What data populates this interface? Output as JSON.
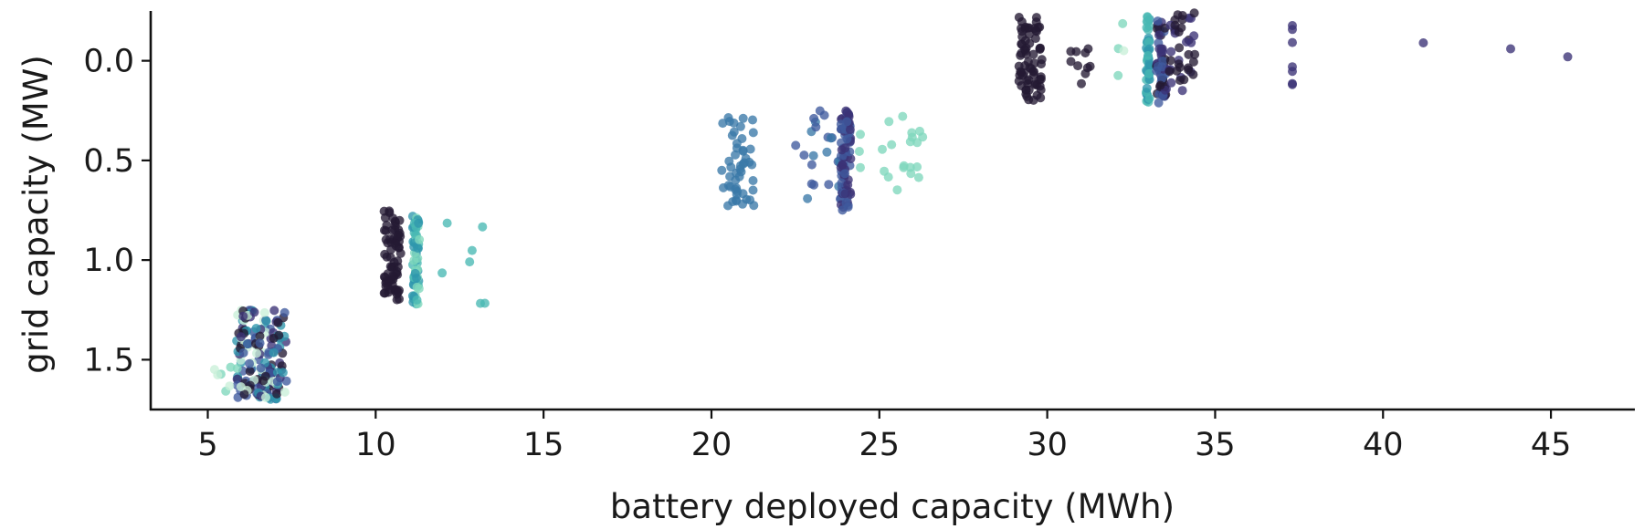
{
  "chart_data": {
    "type": "scatter",
    "title": "",
    "xlabel": "battery deployed capacity (MWh)",
    "ylabel": "grid capacity (MW)",
    "xlim": [
      3.3,
      47.5
    ],
    "ylim": [
      1.75,
      -0.25
    ],
    "y_inverted": true,
    "x_ticks": [
      5,
      10,
      15,
      20,
      25,
      30,
      35,
      40,
      45
    ],
    "x_tick_labels": [
      "5",
      "10",
      "15",
      "20",
      "25",
      "30",
      "35",
      "40",
      "45"
    ],
    "y_ticks": [
      0.0,
      0.5,
      1.0,
      1.5
    ],
    "y_tick_labels": [
      "0.0",
      "0.5",
      "1.0",
      "1.5"
    ],
    "grid": false,
    "legend": "none",
    "palette": [
      "#241a33",
      "#3b3276",
      "#3f5a9d",
      "#3a78a8",
      "#2f97ad",
      "#49b8b3",
      "#7fd7bd",
      "#c9efd8"
    ],
    "clusters": [
      {
        "x_center": 6.6,
        "x_jitter": 0.75,
        "y_values": [
          1.25,
          1.3,
          1.35,
          1.4,
          1.45,
          1.5,
          1.55,
          1.6,
          1.65,
          1.7
        ],
        "color_index": [
          0,
          1,
          2,
          4,
          7
        ],
        "count": 170
      },
      {
        "x_center": 10.5,
        "x_jitter": 0.25,
        "y_values": [
          0.75,
          0.8,
          0.85,
          0.9,
          0.95,
          1.0,
          1.05,
          1.1,
          1.15,
          1.2
        ],
        "color_index": [
          0
        ],
        "count": 70
      },
      {
        "x_center": 11.2,
        "x_jitter": 0.1,
        "y_values": [
          0.78,
          0.85,
          0.9,
          0.95,
          1.0,
          1.05,
          1.1,
          1.15,
          1.2,
          1.25
        ],
        "color_index": [
          4,
          5,
          6
        ],
        "count": 60
      },
      {
        "x_center": 20.8,
        "x_jitter": 0.5,
        "y_values": [
          0.26,
          0.35,
          0.45,
          0.55,
          0.6,
          0.65,
          0.7,
          0.74
        ],
        "color_index": [
          3
        ],
        "count": 50
      },
      {
        "x_center": 23.2,
        "x_jitter": 0.8,
        "y_values": [
          0.25,
          0.35,
          0.45,
          0.55,
          0.65,
          0.72
        ],
        "color_index": [
          2,
          3
        ],
        "count": 25
      },
      {
        "x_center": 24.0,
        "x_jitter": 0.15,
        "y_values": [
          0.25,
          0.3,
          0.35,
          0.4,
          0.45,
          0.5,
          0.55,
          0.6,
          0.65,
          0.7,
          0.75
        ],
        "color_index": [
          1,
          2
        ],
        "count": 80
      },
      {
        "x_center": 25.4,
        "x_jitter": 1.0,
        "y_values": [
          0.27,
          0.35,
          0.45,
          0.55,
          0.65
        ],
        "color_index": [
          6
        ],
        "count": 22
      },
      {
        "x_center": 29.5,
        "x_jitter": 0.35,
        "y_values": [
          -0.22,
          -0.1,
          0.0,
          0.1,
          0.2
        ],
        "color_index": [
          0
        ],
        "count": 70
      },
      {
        "x_center": 31.0,
        "x_jitter": 0.3,
        "y_values": [
          -0.07,
          0.0,
          0.1,
          0.15
        ],
        "color_index": [
          0
        ],
        "count": 10
      },
      {
        "x_center": 33.0,
        "x_jitter": 0.05,
        "y_values": [
          -0.23,
          -0.1,
          0.0,
          0.1,
          0.22
        ],
        "color_index": [
          5,
          4
        ],
        "count": 50
      },
      {
        "x_center": 33.4,
        "x_jitter": 0.15,
        "y_values": [
          -0.2,
          -0.1,
          0.0,
          0.1,
          0.22
        ],
        "color_index": [
          1,
          2,
          0
        ],
        "count": 60
      },
      {
        "x_center": 34.0,
        "x_jitter": 0.4,
        "y_values": [
          -0.25,
          -0.1,
          0.0,
          0.1,
          0.15
        ],
        "color_index": [
          1,
          0
        ],
        "count": 40
      },
      {
        "x_center": 37.3,
        "x_jitter": 0.0,
        "y_values": [
          -0.18,
          -0.05,
          0.02,
          0.1,
          0.21
        ],
        "color_index": [
          1
        ],
        "count": 7
      },
      {
        "x_center": 41.2,
        "x_jitter": 0.0,
        "y_values": [
          -0.09
        ],
        "color_index": [
          1
        ],
        "count": 1
      },
      {
        "x_center": 43.8,
        "x_jitter": 0.0,
        "y_values": [
          -0.06
        ],
        "color_index": [
          1
        ],
        "count": 1
      },
      {
        "x_center": 45.5,
        "x_jitter": 0.0,
        "y_values": [
          -0.02
        ],
        "color_index": [
          1
        ],
        "count": 1
      },
      {
        "x_center": 5.6,
        "x_jitter": 0.4,
        "y_values": [
          1.52,
          1.57,
          1.62,
          1.68
        ],
        "color_index": [
          7,
          6
        ],
        "count": 8
      },
      {
        "x_center": 12.6,
        "x_jitter": 0.8,
        "y_values": [
          0.78,
          0.93,
          1.03,
          1.1,
          1.24
        ],
        "color_index": [
          5
        ],
        "count": 7
      },
      {
        "x_center": 32.2,
        "x_jitter": 0.1,
        "y_values": [
          -0.2,
          0.12,
          0.22
        ],
        "color_index": [
          7,
          6
        ],
        "count": 4
      }
    ]
  }
}
